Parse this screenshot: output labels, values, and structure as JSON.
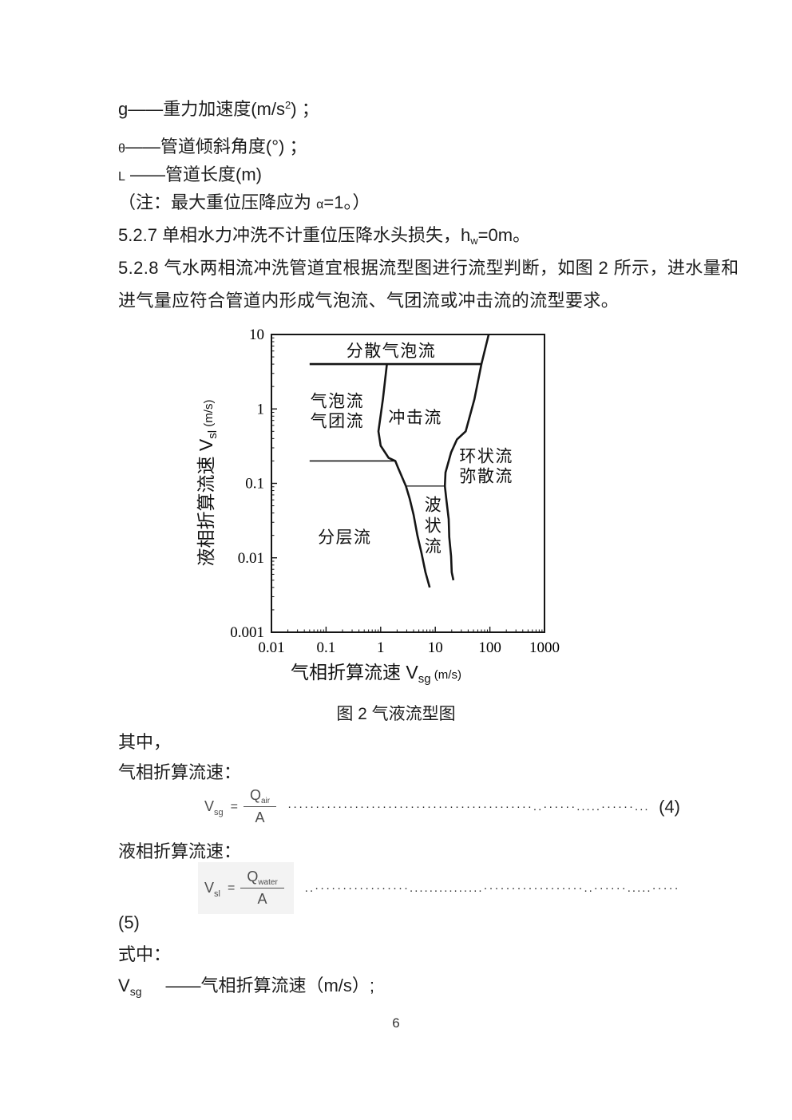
{
  "document": {
    "definition_lines": [
      {
        "pre": "g——重力加速度(m/s",
        "sup": "2",
        "post": ") ；"
      },
      {
        "sym": "θ",
        "post": "——管道倾斜角度(°) ；"
      },
      {
        "sym": "L",
        "post": " ——管道长度(m)"
      },
      {
        "pre": "（注：最大重位压降应为 ",
        "sym": "α",
        "post": "=1。）"
      }
    ],
    "para_527": {
      "pre": "5.2.7 单相水力冲洗不计重位压降水头损失，h",
      "sub": "w",
      "post": "=0m。"
    },
    "para_528_line1": "5.2.8 气水两相流冲洗管道宜根据流型图进行流型判断，如图 2 所示，进水量和",
    "para_528_line2": "进气量应符合管道内形成气泡流、气团流或冲击流的流型要求。",
    "figure_caption": "图 2 气液流型图",
    "among_label": "其中，",
    "gas_velocity_label": "气相折算流速：",
    "liquid_velocity_label": "液相折算流速：",
    "eq5_number": "(5)",
    "where_label": "式中：",
    "vsg_definition": {
      "term": "V",
      "term_sub": "sg",
      "desc": "——气相折算流速（m/s）;"
    },
    "page_number": "6"
  },
  "formula4": {
    "lhs": "V",
    "lhs_sub": "sg",
    "equals": "=",
    "numerator": "Q",
    "numerator_sub": "air",
    "denominator": "A",
    "leader": "············································..······.....······...",
    "number": "(4)"
  },
  "formula5": {
    "lhs": "V",
    "lhs_sub": "sl",
    "equals": "=",
    "numerator": "Q",
    "numerator_sub": "water",
    "denominator": "A",
    "leader": "..·················...............··················..······.....······..."
  },
  "chart_data": {
    "type": "line",
    "title": "气液流型图",
    "xlabel": {
      "pre": "气相折算流速 V",
      "sub": "sg",
      "post": " (m/s)"
    },
    "ylabel": {
      "pre": "液相折算流速 V",
      "sub": "sl",
      "post": " (m/s)"
    },
    "xscale": "log",
    "yscale": "log",
    "xlim": [
      0.01,
      1000
    ],
    "ylim": [
      0.001,
      10
    ],
    "x_ticks": [
      0.01,
      0.1,
      1,
      10,
      100,
      1000
    ],
    "x_tick_labels": [
      "0.01",
      "0.1",
      "1",
      "10",
      "100",
      "1000"
    ],
    "y_ticks": [
      10,
      1,
      0.1,
      0.01,
      0.001
    ],
    "y_tick_labels": [
      "10",
      "1",
      "0.1",
      "0.01",
      "0.001"
    ],
    "grid": false,
    "boundaries": [
      {
        "name": "dispersed-bubble-boundary",
        "points": [
          [
            0.05,
            4
          ],
          [
            70,
            4
          ]
        ]
      },
      {
        "name": "churn-left-boundary",
        "points": [
          [
            1.3,
            4
          ],
          [
            1.1,
            1.35
          ],
          [
            0.91,
            0.5
          ],
          [
            1.0,
            0.32
          ],
          [
            1.4,
            0.22
          ],
          [
            1.85,
            0.2
          ],
          [
            2.1,
            0.16
          ],
          [
            2.9,
            0.092
          ]
        ]
      },
      {
        "name": "bubble-slug-boundary",
        "points": [
          [
            0.05,
            0.2
          ],
          [
            1.85,
            0.2
          ]
        ]
      },
      {
        "name": "churn-wavy-boundary",
        "points": [
          [
            2.9,
            0.092
          ],
          [
            15,
            0.092
          ]
        ]
      },
      {
        "name": "stratified-wavy-boundary",
        "points": [
          [
            2.9,
            0.092
          ],
          [
            3.4,
            0.062
          ],
          [
            4.0,
            0.038
          ],
          [
            4.7,
            0.02
          ],
          [
            5.6,
            0.0115
          ],
          [
            6.6,
            0.0064
          ],
          [
            7.9,
            0.004
          ]
        ]
      },
      {
        "name": "annular-boundary",
        "points": [
          [
            95,
            10
          ],
          [
            70,
            4
          ],
          [
            52,
            1.35
          ],
          [
            36,
            0.5
          ],
          [
            25,
            0.39
          ],
          [
            19.5,
            0.26
          ],
          [
            15.4,
            0.14
          ],
          [
            15,
            0.092
          ],
          [
            16,
            0.059
          ],
          [
            17.6,
            0.033
          ],
          [
            18,
            0.019
          ],
          [
            19.5,
            0.0105
          ],
          [
            20,
            0.0064
          ],
          [
            21.5,
            0.005
          ]
        ]
      }
    ],
    "regions": [
      {
        "label": "分散气泡流",
        "x": 1.56,
        "y": 6,
        "orientation": "horizontal"
      },
      {
        "label": "气泡流\n气团流",
        "x": 0.16,
        "y": 0.93,
        "orientation": "horizontal"
      },
      {
        "label": "冲击流",
        "x": 4.3,
        "y": 0.77,
        "orientation": "horizontal"
      },
      {
        "label": "环状流\n弥散流",
        "x": 86,
        "y": 0.17,
        "orientation": "horizontal"
      },
      {
        "label": "分层流",
        "x": 0.22,
        "y": 0.019,
        "orientation": "horizontal"
      },
      {
        "label": "波状流",
        "x": 9.3,
        "y": 0.027,
        "orientation": "vertical"
      }
    ],
    "line_color": "#151515"
  }
}
